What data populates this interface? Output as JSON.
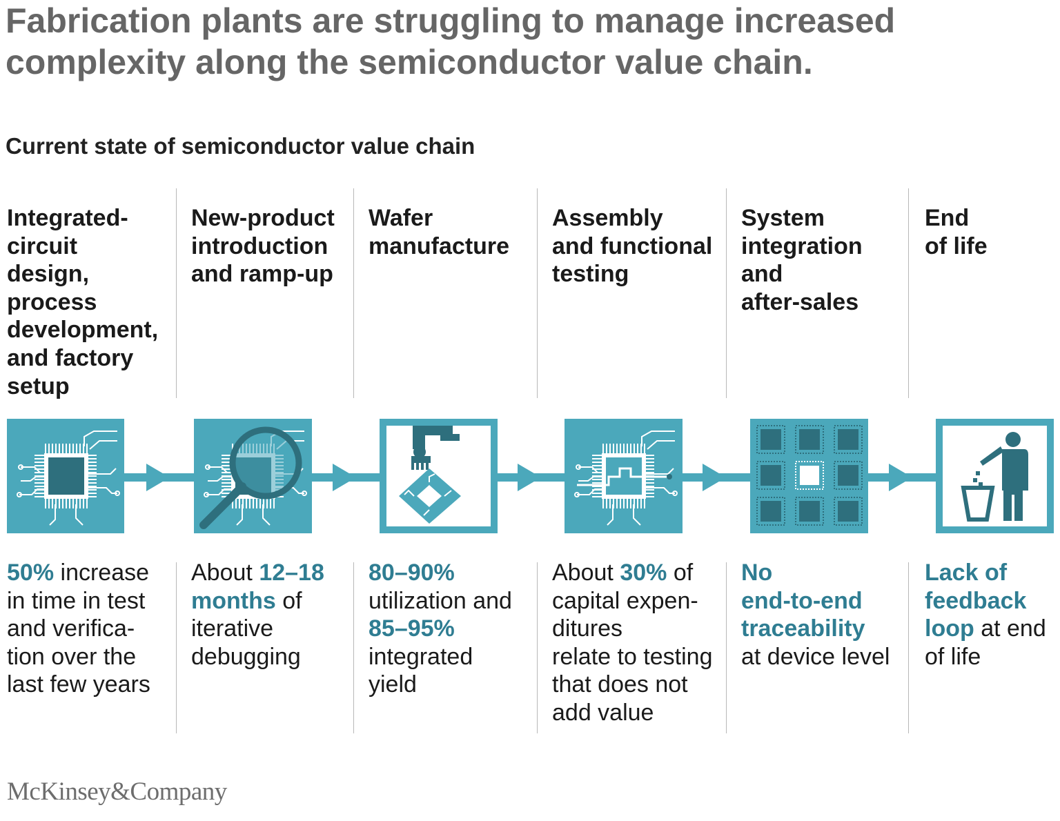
{
  "title": {
    "line1": "Fabrication plants are struggling to manage increased",
    "line2": "complexity along the semiconductor value chain."
  },
  "subtitle": "Current state of semiconductor value chain",
  "colors": {
    "teal": "#4ba8bb",
    "dark_teal": "#2e6f7d",
    "highlight": "#2f7d92"
  },
  "stages": [
    {
      "icon": "chip-icon",
      "title": [
        "Integrated-",
        "circuit",
        "design,",
        "process",
        "development,",
        "and factory",
        "setup"
      ],
      "desc": [
        [
          {
            "t": "50%",
            "h": true
          },
          {
            "t": " increase",
            "h": false
          }
        ],
        [
          {
            "t": "in time in test",
            "h": false
          }
        ],
        [
          {
            "t": "and verifica-",
            "h": false
          }
        ],
        [
          {
            "t": "tion over the",
            "h": false
          }
        ],
        [
          {
            "t": "last few years",
            "h": false
          }
        ]
      ]
    },
    {
      "icon": "magnifier-chip-icon",
      "title": [
        "New-product",
        "introduction",
        "and ramp-up"
      ],
      "desc": [
        [
          {
            "t": "About ",
            "h": false
          },
          {
            "t": "12–18",
            "h": true
          }
        ],
        [
          {
            "t": "months",
            "h": true
          },
          {
            "t": " of",
            "h": false
          }
        ],
        [
          {
            "t": "iterative",
            "h": false
          }
        ],
        [
          {
            "t": "debugging",
            "h": false
          }
        ]
      ]
    },
    {
      "icon": "wafer-robot-icon",
      "title": [
        "Wafer",
        "manufacture"
      ],
      "desc": [
        [
          {
            "t": "80–90%",
            "h": true
          }
        ],
        [
          {
            "t": "utilization and",
            "h": false
          }
        ],
        [
          {
            "t": "85–95%",
            "h": true
          }
        ],
        [
          {
            "t": "integrated",
            "h": false
          }
        ],
        [
          {
            "t": "yield",
            "h": false
          }
        ]
      ]
    },
    {
      "icon": "chip-test-icon",
      "title": [
        "Assembly",
        "and functional",
        "testing"
      ],
      "desc": [
        [
          {
            "t": "About ",
            "h": false
          },
          {
            "t": "30%",
            "h": true
          },
          {
            "t": " of",
            "h": false
          }
        ],
        [
          {
            "t": "capital expen-",
            "h": false
          }
        ],
        [
          {
            "t": "ditures",
            "h": false
          }
        ],
        [
          {
            "t": "relate to testing",
            "h": false
          }
        ],
        [
          {
            "t": "that does not",
            "h": false
          }
        ],
        [
          {
            "t": "add value",
            "h": false
          }
        ]
      ]
    },
    {
      "icon": "chip-grid-icon",
      "title": [
        "System",
        "integration",
        "and",
        "after-sales"
      ],
      "desc": [
        [
          {
            "t": "No",
            "h": true
          }
        ],
        [
          {
            "t": "end-to-end",
            "h": true
          }
        ],
        [
          {
            "t": "traceability",
            "h": true
          }
        ],
        [
          {
            "t": "at device level",
            "h": false
          }
        ]
      ]
    },
    {
      "icon": "trash-person-icon",
      "title": [
        "End",
        "of life"
      ],
      "desc": [
        [
          {
            "t": "Lack of",
            "h": true
          }
        ],
        [
          {
            "t": "feedback",
            "h": true
          }
        ],
        [
          {
            "t": "loop",
            "h": true
          },
          {
            "t": " at end",
            "h": false
          }
        ],
        [
          {
            "t": "of life",
            "h": false
          }
        ]
      ]
    }
  ],
  "footer": "McKinsey&Company"
}
